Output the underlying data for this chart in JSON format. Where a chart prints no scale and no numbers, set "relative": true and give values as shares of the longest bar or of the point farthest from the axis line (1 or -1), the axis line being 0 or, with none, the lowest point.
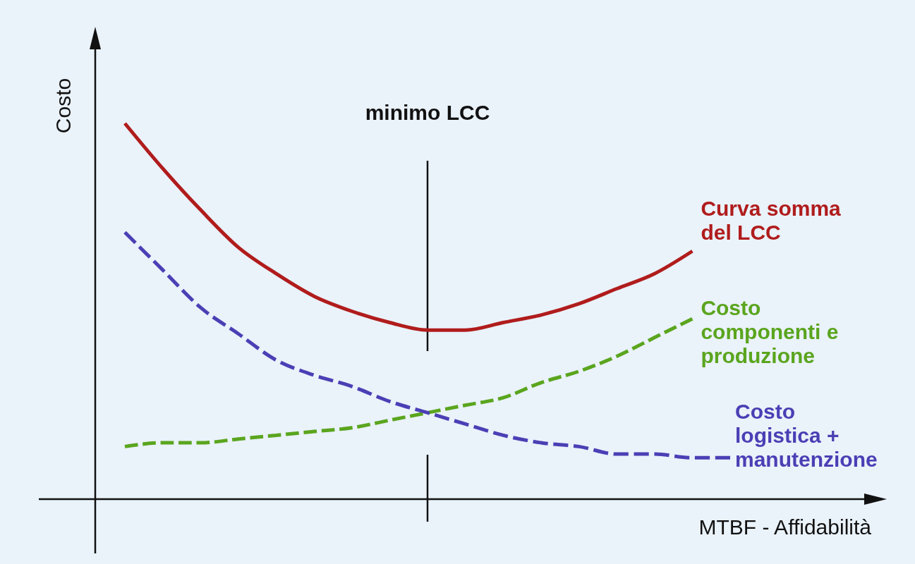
{
  "chart_data": {
    "type": "line",
    "relative": true,
    "xlabel": "MTBF - Affidabilità",
    "ylabel": "Costo",
    "categories": [
      null,
      null,
      null,
      null,
      null,
      null,
      null,
      null,
      null,
      null,
      null,
      null,
      null,
      null,
      null,
      null,
      null
    ],
    "series": [
      {
        "name": "Curva somma del LCC",
        "color": "#b01c1c",
        "line_style": "solid",
        "values": [
          1.0,
          0.88,
          0.77,
          0.67,
          0.6,
          0.54,
          0.5,
          0.47,
          0.45,
          0.45,
          0.47,
          0.49,
          0.52,
          0.56,
          0.6,
          0.66,
          null
        ]
      },
      {
        "name": "Costo componenti e produzione",
        "color": "#5aa51e",
        "line_style": "dashed",
        "values": [
          0.14,
          0.15,
          0.15,
          0.16,
          0.17,
          0.18,
          0.19,
          0.21,
          0.23,
          0.25,
          0.27,
          0.31,
          0.34,
          0.38,
          0.43,
          0.48,
          null
        ]
      },
      {
        "name": "Costo logistica + manutenzione",
        "color": "#4b3fb5",
        "line_style": "dashed",
        "values": [
          0.71,
          0.61,
          0.51,
          0.44,
          0.37,
          0.33,
          0.3,
          0.26,
          0.23,
          0.2,
          0.17,
          0.15,
          0.14,
          0.12,
          0.12,
          0.11,
          0.11
        ]
      }
    ],
    "annotations": [
      "minimo LCC"
    ]
  }
}
